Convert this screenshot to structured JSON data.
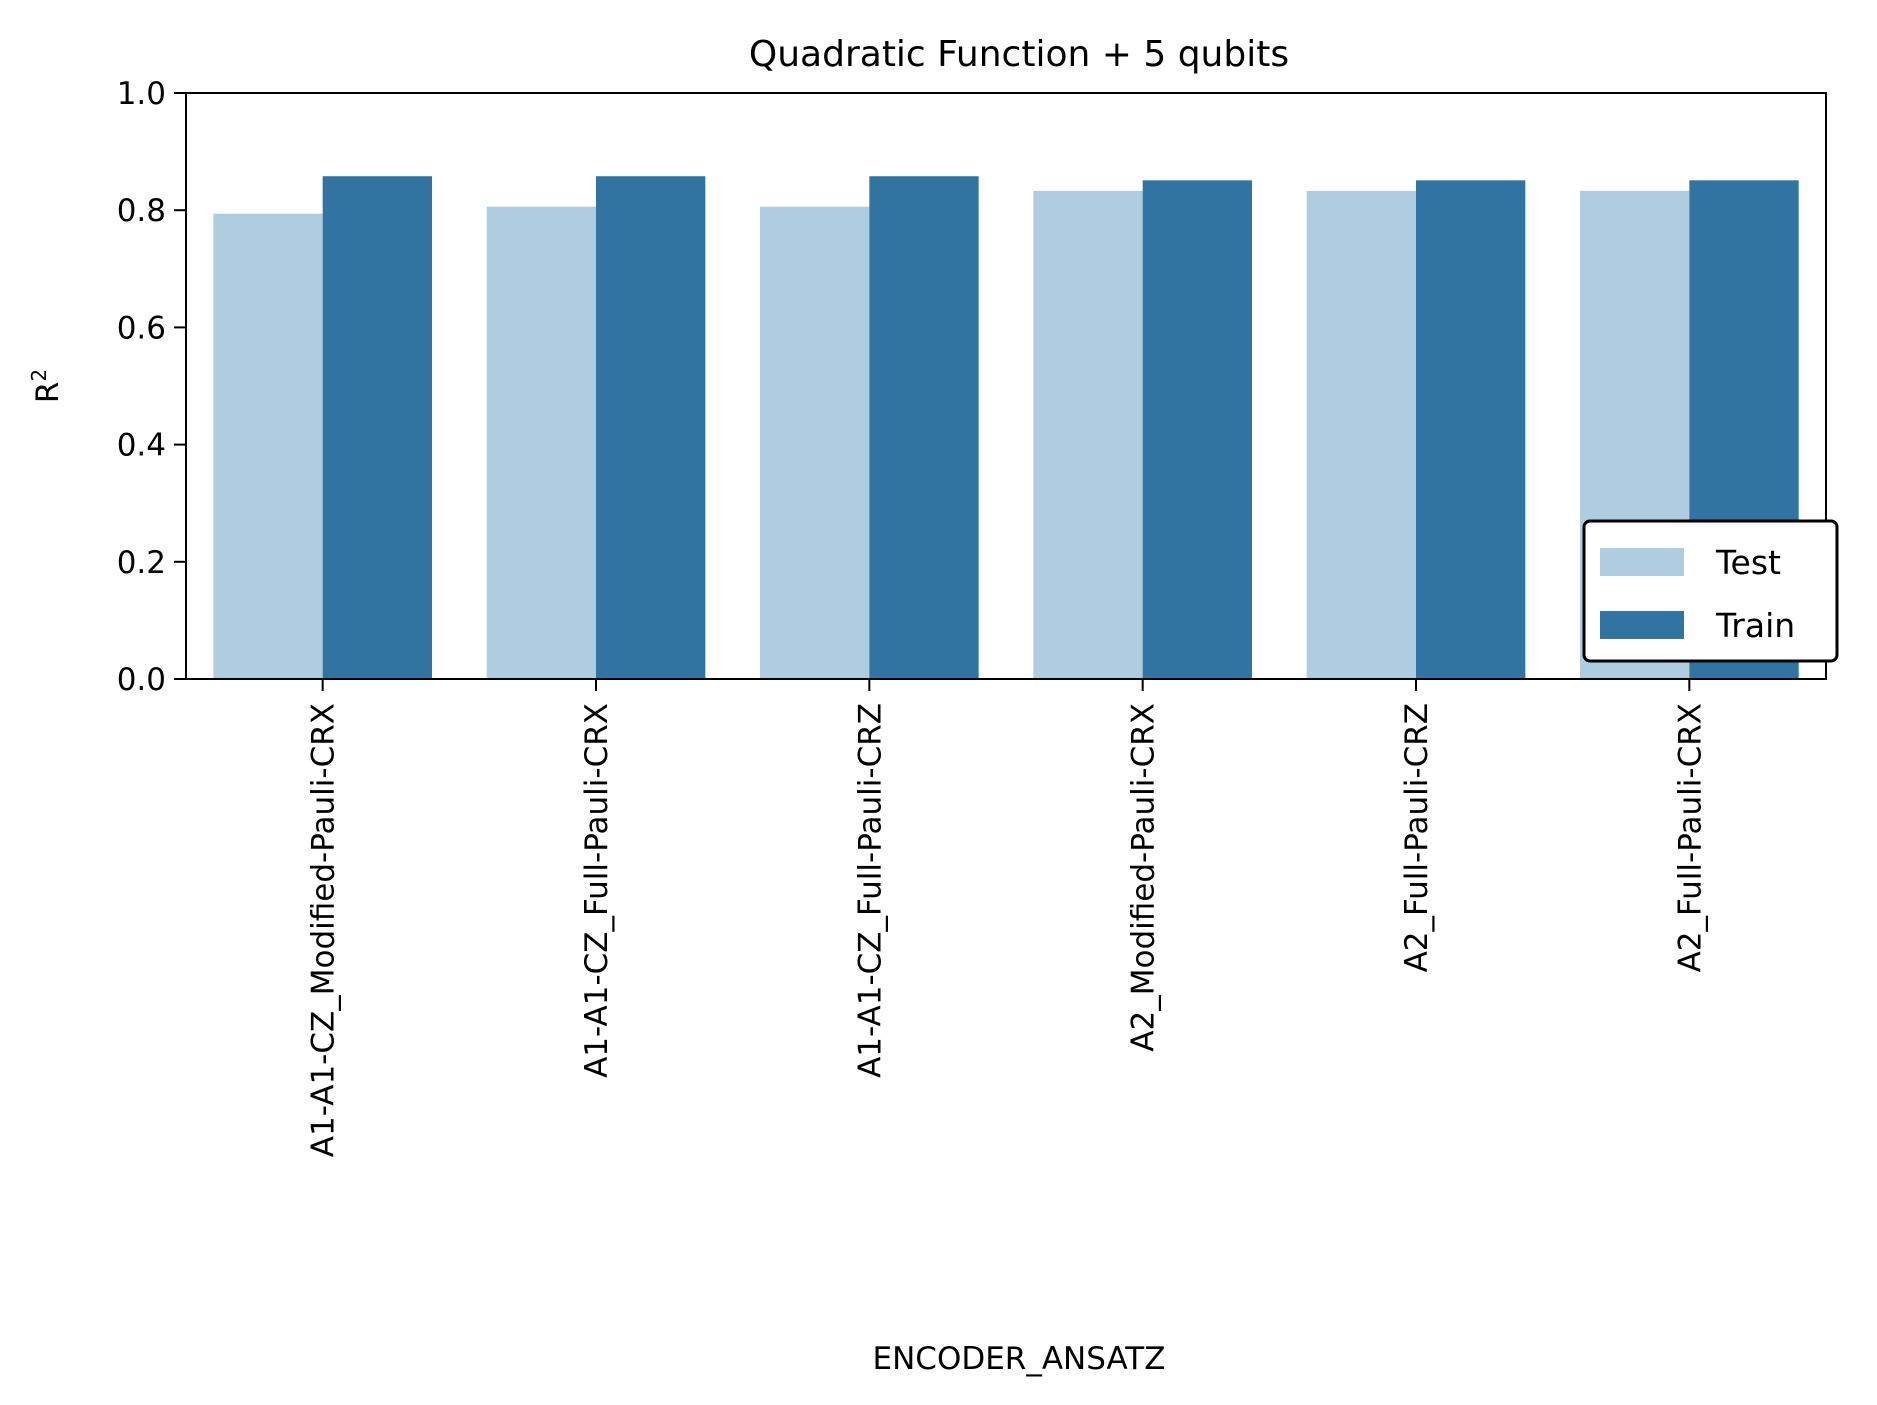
{
  "chart_data": {
    "type": "bar",
    "title": "Quadratic Function + 5 qubits",
    "xlabel": "ENCODER_ANSATZ",
    "ylabel_base": "R",
    "ylabel_sup": "2",
    "ylim": [
      0,
      1.0
    ],
    "yticks": [
      "0.0",
      "0.2",
      "0.4",
      "0.6",
      "0.8",
      "1.0"
    ],
    "categories": [
      "A1-A1-CZ_Modified-Pauli-CRX",
      "A1-A1-CZ_Full-Pauli-CRX",
      "A1-A1-CZ_Full-Pauli-CRZ",
      "A2_Modified-Pauli-CRX",
      "A2_Full-Pauli-CRZ",
      "A2_Full-Pauli-CRX"
    ],
    "series": [
      {
        "name": "Test",
        "color": "#aecde1",
        "values": [
          0.794,
          0.806,
          0.806,
          0.833,
          0.833,
          0.833
        ]
      },
      {
        "name": "Train",
        "color": "#3274a1",
        "values": [
          0.858,
          0.858,
          0.858,
          0.851,
          0.851,
          0.851
        ]
      }
    ],
    "legend_position": "lower-right",
    "grid": false
  }
}
